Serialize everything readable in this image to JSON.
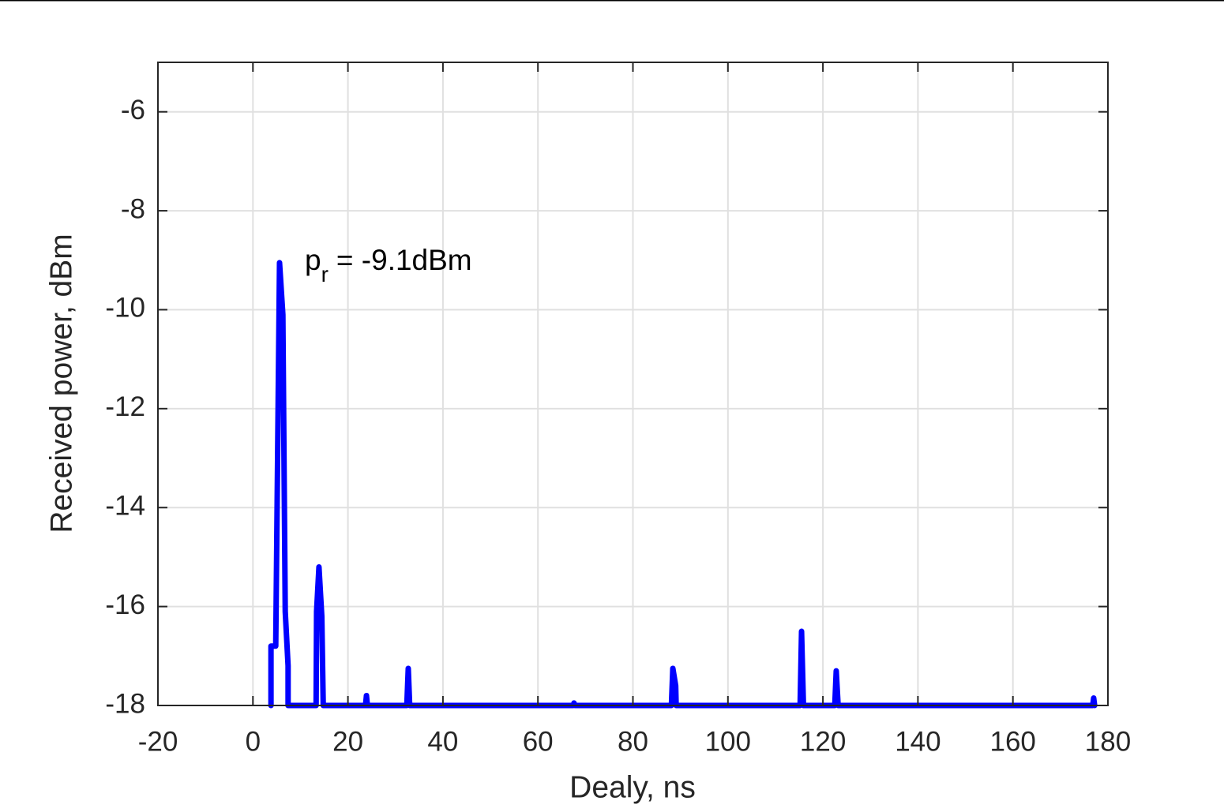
{
  "chart_data": {
    "type": "line",
    "xlabel": "Dealy, ns",
    "ylabel": "Received power, dBm",
    "annotation": {
      "base": "p",
      "subscript": "r",
      "text": "= -9.1dBm"
    },
    "xlim": [
      -20,
      180
    ],
    "ylim": [
      -18,
      -5
    ],
    "xticks": [
      -20,
      0,
      20,
      40,
      60,
      80,
      100,
      120,
      140,
      160,
      180
    ],
    "yticks": [
      -18,
      -16,
      -14,
      -12,
      -10,
      -8,
      -6
    ],
    "grid": true,
    "series": [
      {
        "color": "#0000ff",
        "x": [
          3.8,
          3.8,
          4.8,
          5.6,
          6.3,
          6.8,
          7.4,
          7.4,
          13.3,
          13.4,
          13.9,
          14.5,
          14.8,
          23.7,
          23.9,
          24.1,
          32.4,
          32.7,
          33.0,
          67.4,
          67.6,
          67.8,
          88.1,
          88.4,
          89.0,
          89.1,
          115.2,
          115.5,
          115.9,
          122.5,
          122.8,
          123.2,
          176.8,
          177.0,
          177.2
        ],
        "values": [
          -18,
          -16.8,
          -16.8,
          -9.05,
          -10.1,
          -16.1,
          -17.2,
          -18,
          -18,
          -16.1,
          -15.2,
          -16.2,
          -18,
          -18,
          -17.8,
          -18,
          -18,
          -17.25,
          -18,
          -18,
          -17.95,
          -18,
          -18,
          -17.25,
          -17.6,
          -18,
          -18,
          -16.5,
          -18,
          -18,
          -17.3,
          -18,
          -18,
          -17.85,
          -18
        ]
      }
    ]
  }
}
